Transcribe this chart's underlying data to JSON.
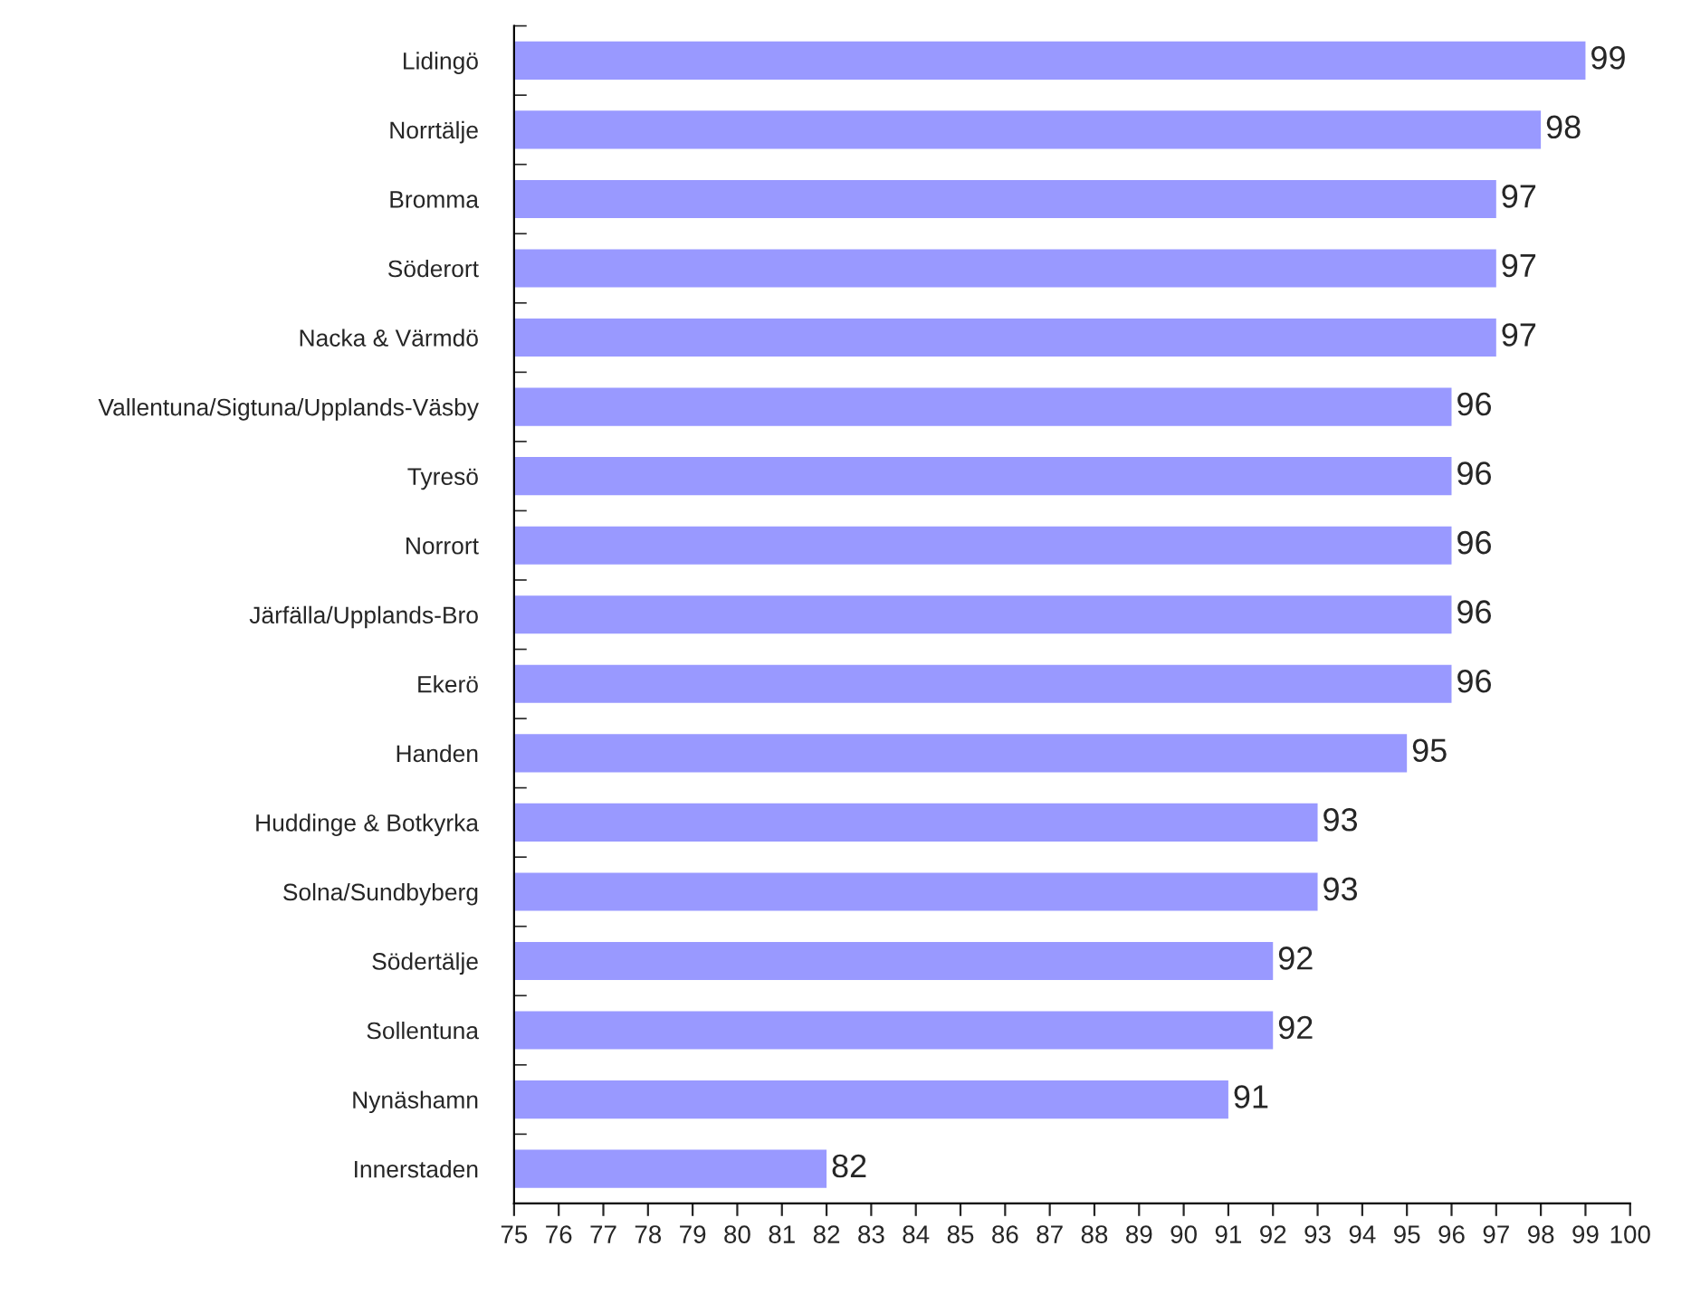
{
  "chart_data": {
    "type": "bar",
    "orientation": "horizontal",
    "categories": [
      "Lidingö",
      "Norrtälje",
      "Bromma",
      "Söderort",
      "Nacka & Värmdö",
      "Vallentuna/Sigtuna/Upplands-Väsby",
      "Tyresö",
      "Norrort",
      "Järfälla/Upplands-Bro",
      "Ekerö",
      "Handen",
      "Huddinge & Botkyrka",
      "Solna/Sundbyberg",
      "Södertälje",
      "Sollentuna",
      "Nynäshamn",
      "Innerstaden"
    ],
    "values": [
      99,
      98,
      97,
      97,
      97,
      96,
      96,
      96,
      96,
      96,
      95,
      93,
      93,
      92,
      92,
      91,
      82
    ],
    "color": "#9999ff",
    "xlim": [
      75,
      100
    ],
    "xticks": [
      75,
      76,
      77,
      78,
      79,
      80,
      81,
      82,
      83,
      84,
      85,
      86,
      87,
      88,
      89,
      90,
      91,
      92,
      93,
      94,
      95,
      96,
      97,
      98,
      99,
      100
    ],
    "data_labels": true,
    "grid": false,
    "legend": false
  }
}
